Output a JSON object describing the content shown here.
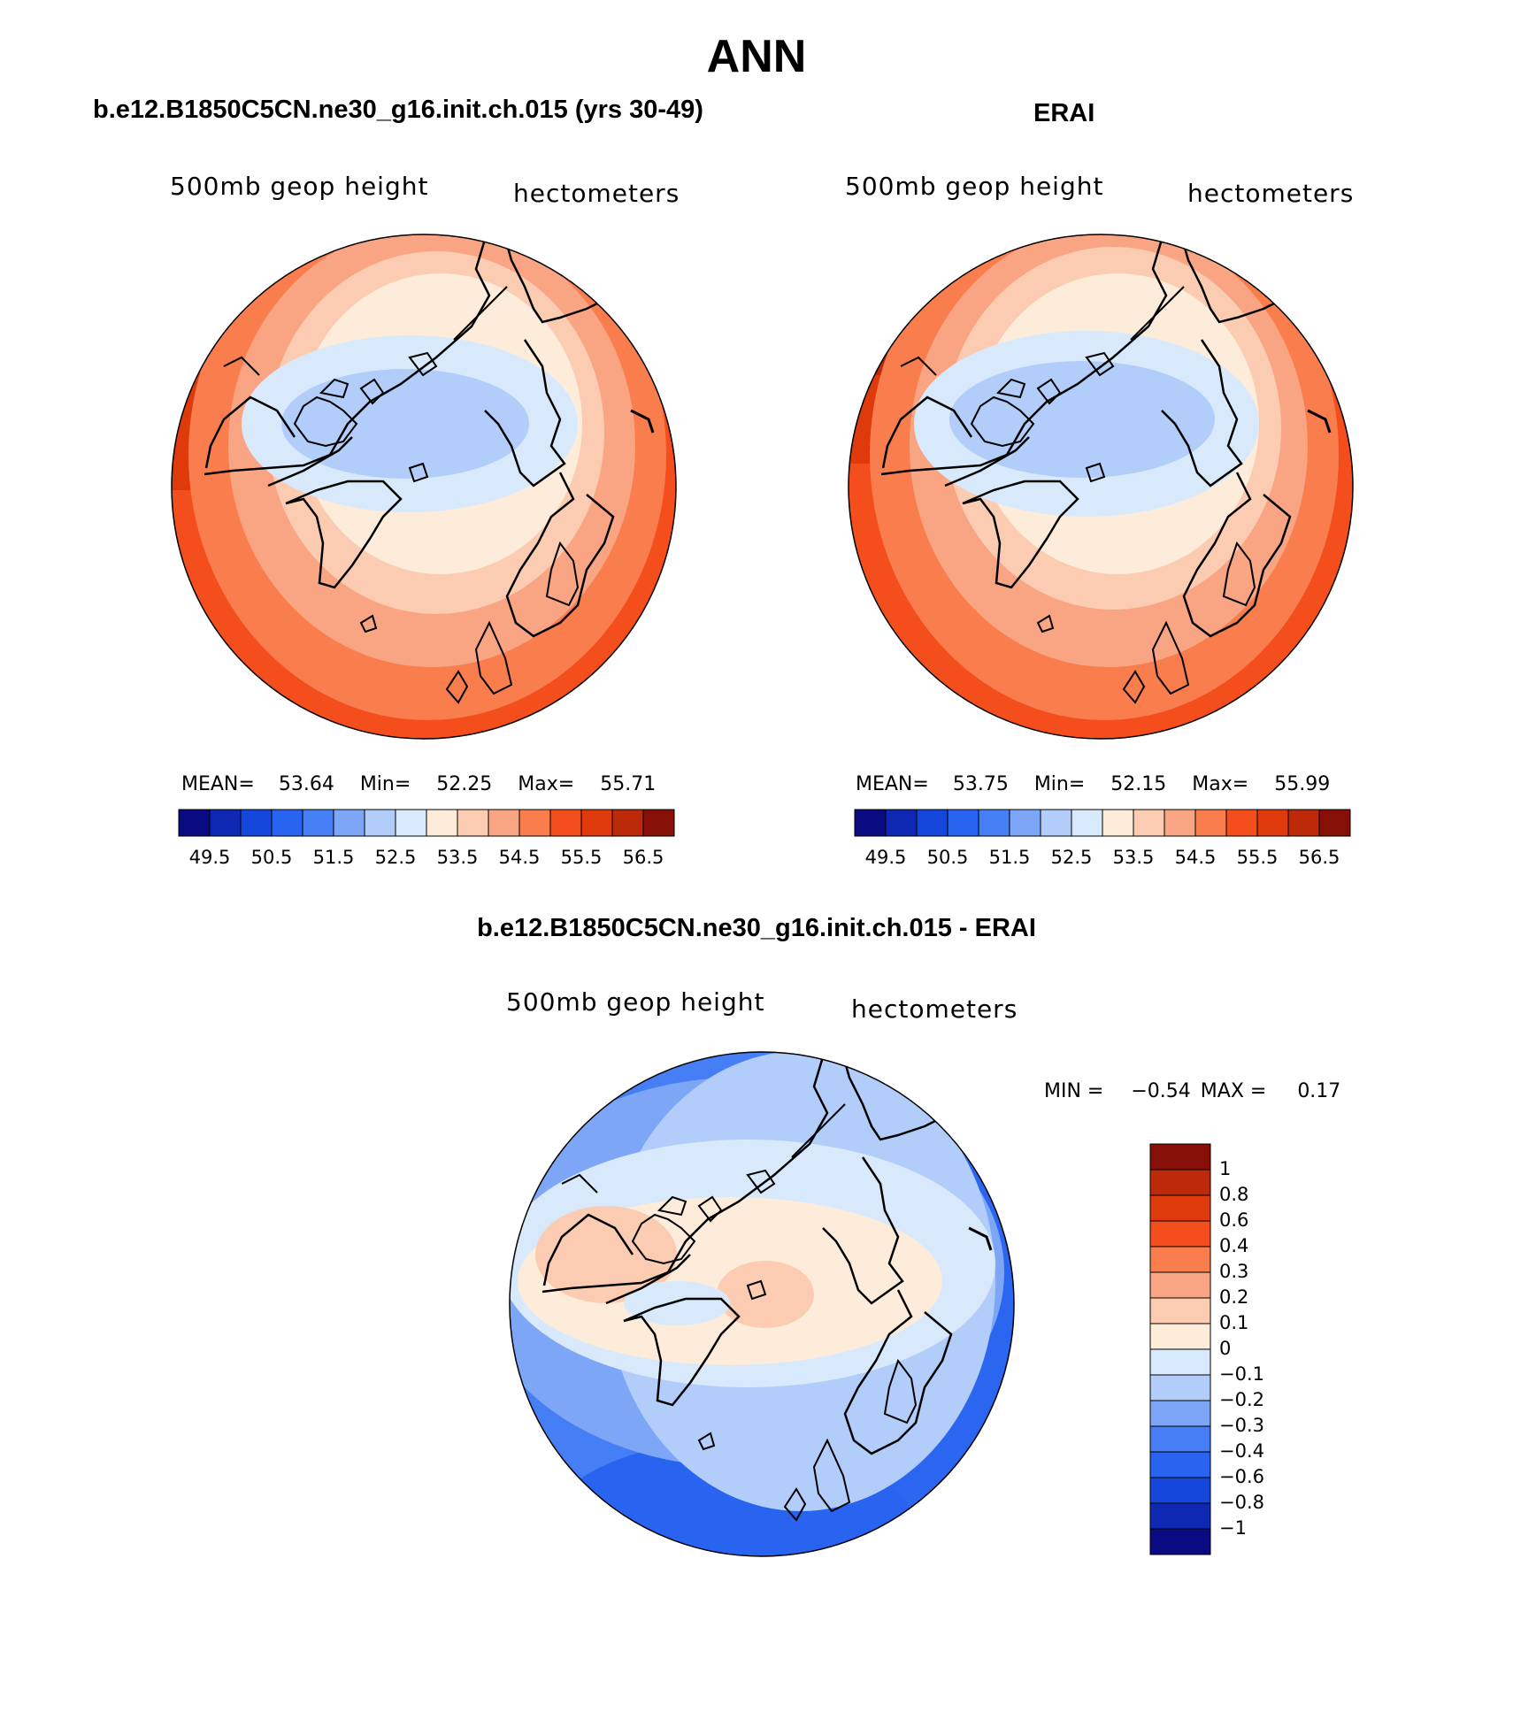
{
  "figure": {
    "title": "ANN",
    "panels": [
      {
        "title": "b.e12.B1850C5CN.ne30_g16.init.ch.015 (yrs 30-49)",
        "left_label": "500mb geop height",
        "right_label": "hectometers",
        "stats": {
          "mean_label": "MEAN=",
          "mean": "53.64",
          "min_label": "Min=",
          "min": "52.25",
          "max_label": "Max=",
          "max": "55.71"
        }
      },
      {
        "title": "ERAI",
        "left_label": "500mb geop height",
        "right_label": "hectometers",
        "stats": {
          "mean_label": "MEAN=",
          "mean": "53.75",
          "min_label": "Min=",
          "min": "52.15",
          "max_label": "Max=",
          "max": "55.99"
        }
      },
      {
        "title": "b.e12.B1850C5CN.ne30_g16.init.ch.015 - ERAI",
        "left_label": "500mb geop height",
        "right_label": "hectometers",
        "stats": {
          "min_label": "MIN =",
          "min": "−0.54",
          "max_label": "MAX =",
          "max": "0.17"
        }
      }
    ]
  },
  "chart_data": [
    {
      "type": "heatmap",
      "projection": "north-polar-stereographic",
      "title": "b.e12.B1850C5CN.ne30_g16.init.ch.015 (yrs 30-49)",
      "variable": "500mb geop height",
      "units": "hectometers",
      "mean": 53.64,
      "min": 52.25,
      "max": 55.71,
      "levels": [
        49.5,
        50,
        50.5,
        51,
        51.5,
        52,
        52.5,
        53,
        53.5,
        54,
        54.5,
        55,
        55.5,
        56,
        56.5
      ],
      "tick_labels": [
        "49.5",
        "50.5",
        "51.5",
        "52.5",
        "53.5",
        "54.5",
        "55.5",
        "56.5"
      ],
      "colors": [
        "#0a0a82",
        "#0e28b4",
        "#1446dc",
        "#2864f0",
        "#467ef5",
        "#7ea6f7",
        "#b2cdfa",
        "#d9e9fc",
        "#fdecda",
        "#fbccb1",
        "#f9a584",
        "#f97d4d",
        "#f44e1d",
        "#de3a0c",
        "#bd2a0a",
        "#861008"
      ]
    },
    {
      "type": "heatmap",
      "projection": "north-polar-stereographic",
      "title": "ERAI",
      "variable": "500mb geop height",
      "units": "hectometers",
      "mean": 53.75,
      "min": 52.15,
      "max": 55.99,
      "levels": [
        49.5,
        50,
        50.5,
        51,
        51.5,
        52,
        52.5,
        53,
        53.5,
        54,
        54.5,
        55,
        55.5,
        56,
        56.5
      ],
      "tick_labels": [
        "49.5",
        "50.5",
        "51.5",
        "52.5",
        "53.5",
        "54.5",
        "55.5",
        "56.5"
      ],
      "colors": [
        "#0a0a82",
        "#0e28b4",
        "#1446dc",
        "#2864f0",
        "#467ef5",
        "#7ea6f7",
        "#b2cdfa",
        "#d9e9fc",
        "#fdecda",
        "#fbccb1",
        "#f9a584",
        "#f97d4d",
        "#f44e1d",
        "#de3a0c",
        "#bd2a0a",
        "#861008"
      ]
    },
    {
      "type": "heatmap",
      "projection": "north-polar-stereographic",
      "title": "b.e12.B1850C5CN.ne30_g16.init.ch.015 - ERAI",
      "variable": "500mb geop height",
      "units": "hectometers",
      "min": -0.54,
      "max": 0.17,
      "levels": [
        -1,
        -0.8,
        -0.6,
        -0.4,
        -0.3,
        -0.2,
        -0.1,
        0,
        0.1,
        0.2,
        0.3,
        0.4,
        0.6,
        0.8,
        1
      ],
      "tick_labels": [
        "−1",
        "−0.8",
        "−0.6",
        "−0.4",
        "−0.3",
        "−0.2",
        "−0.1",
        "0",
        "0.1",
        "0.2",
        "0.3",
        "0.4",
        "0.6",
        "0.8",
        "1"
      ],
      "colors": [
        "#0a0a82",
        "#0e28b4",
        "#1446dc",
        "#2864f0",
        "#467ef5",
        "#7ea6f7",
        "#b2cdfa",
        "#d9e9fc",
        "#fdecda",
        "#fbccb1",
        "#f9a584",
        "#f97d4d",
        "#f44e1d",
        "#de3a0c",
        "#bd2a0a",
        "#861008"
      ]
    }
  ]
}
